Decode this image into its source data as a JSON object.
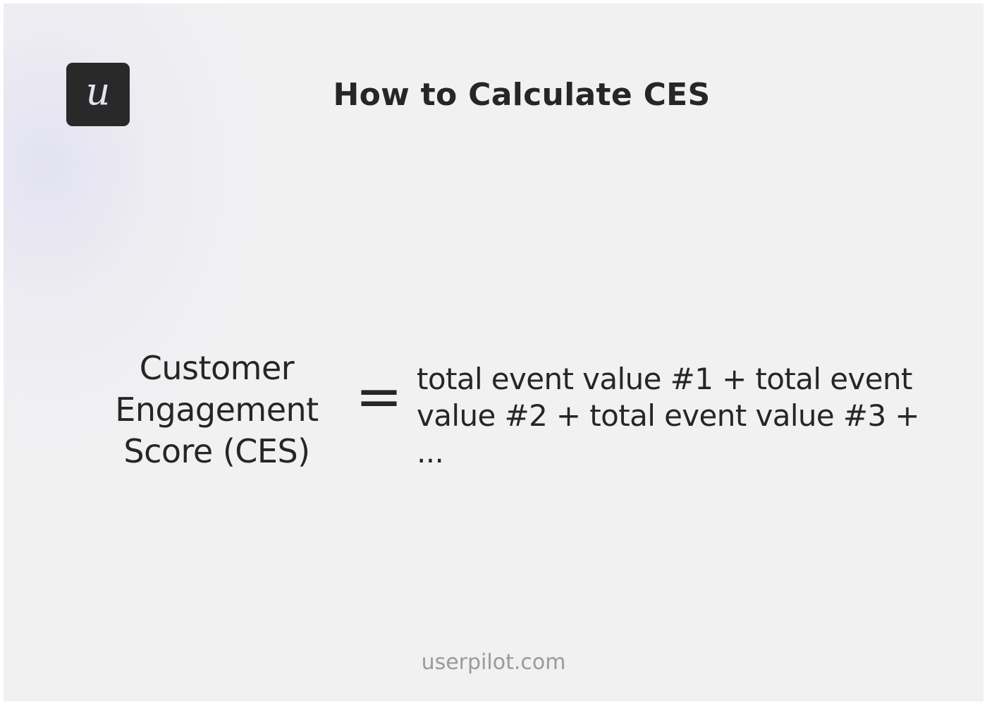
{
  "logo": {
    "letter": "u",
    "background": "#292929"
  },
  "title": "How to Calculate CES",
  "formula": {
    "lhs": "Customer Engagement Score (CES)",
    "operator": "=",
    "rhs": "total event value #1 + total event value #2 + total event value #3 + ..."
  },
  "footer": "userpilot.com"
}
